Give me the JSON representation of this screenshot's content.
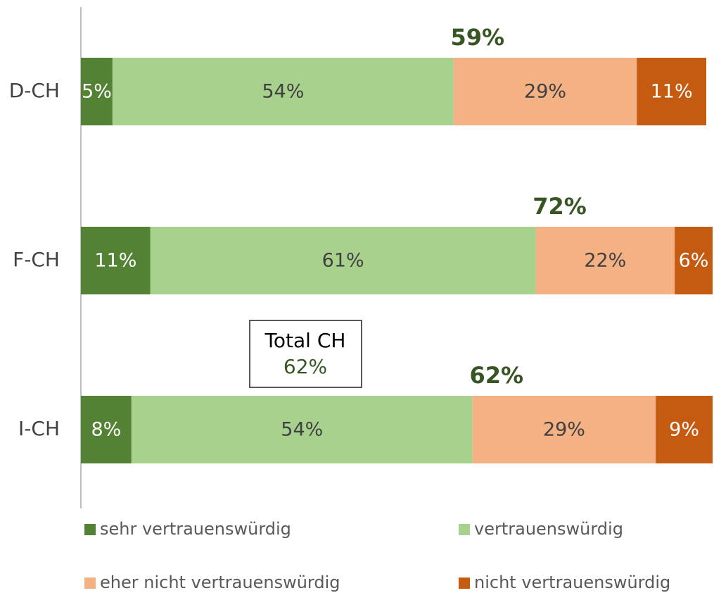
{
  "chart_data": {
    "type": "stacked-bar-horizontal",
    "categories": [
      "D-CH",
      "F-CH",
      "I-CH"
    ],
    "series": [
      {
        "name": "sehr vertrauenswürdig",
        "color": "#548235",
        "label_color": "#ffffff",
        "values": [
          5,
          11,
          8
        ],
        "value_labels": [
          "5%",
          "11%",
          "8%"
        ]
      },
      {
        "name": "vertrauenswürdig",
        "color": "#a9d18e",
        "label_color": "#404040",
        "values": [
          54,
          61,
          54
        ],
        "value_labels": [
          "54%",
          "61%",
          "54%"
        ]
      },
      {
        "name": "eher nicht vertrauenswürdig",
        "color": "#f4b183",
        "label_color": "#404040",
        "values": [
          29,
          22,
          29
        ],
        "value_labels": [
          "29%",
          "22%",
          "29%"
        ]
      },
      {
        "name": "nicht vertrauenswürdig",
        "color": "#c55a11",
        "label_color": "#ffffff",
        "values": [
          11,
          6,
          9
        ],
        "value_labels": [
          "11%",
          "6%",
          "9%"
        ]
      }
    ],
    "annotations": [
      "59%",
      "72%",
      "62%"
    ],
    "total_box": {
      "title": "Total CH",
      "value": "62%"
    },
    "xlim": [
      0,
      100
    ]
  }
}
